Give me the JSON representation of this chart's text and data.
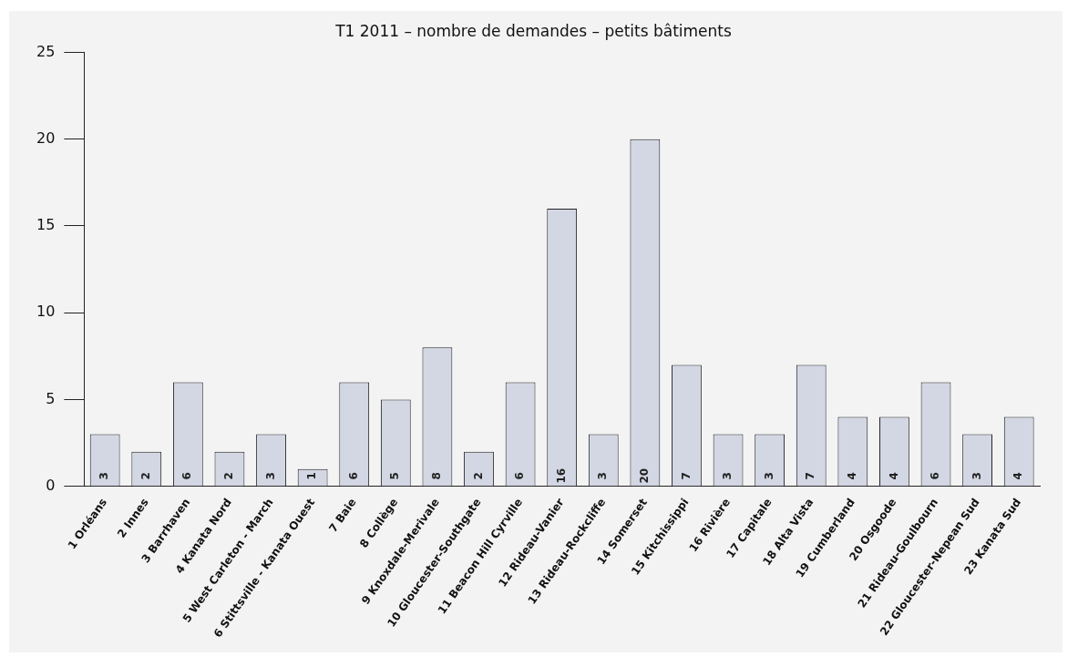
{
  "chart_data": {
    "type": "bar",
    "title": "T1 2011 – nombre de demandes – petits bâtiments",
    "categories": [
      "1 Orléans",
      "2 Innes",
      "3 Barrhaven",
      "4 Kanata Nord",
      "5 West Carleton - March",
      "6 Stittsville - Kanata Ouest",
      "7 Baie",
      "8 Collège",
      "9 Knoxdale-Merivale",
      "10 Gloucester-Southgate",
      "11 Beacon Hill Cyrville",
      "12 Rideau-Vanier",
      "13 Rideau-Rockcliffe",
      "14 Somerset",
      "15 Kitchissippi",
      "16 Rivière",
      "17 Capitale",
      "18 Alta Vista",
      "19 Cumberland",
      "20 Osgoode",
      "21 Rideau-Goulbourn",
      "22 Gloucester-Nepean Sud",
      "23 Kanata Sud"
    ],
    "values": [
      3,
      2,
      6,
      2,
      3,
      1,
      6,
      5,
      8,
      2,
      6,
      16,
      3,
      20,
      7,
      3,
      3,
      7,
      4,
      4,
      6,
      3,
      4
    ],
    "color": "#d3d7e4",
    "ylim": [
      0,
      25
    ],
    "yticks": [
      0,
      5,
      10,
      15,
      20,
      25
    ],
    "data_labels": true,
    "grid": false,
    "legend": false
  }
}
